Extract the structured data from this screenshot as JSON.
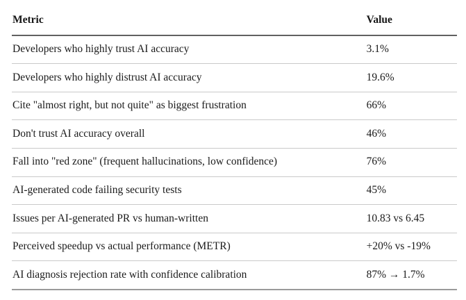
{
  "table": {
    "columns": [
      {
        "key": "metric",
        "label": "Metric"
      },
      {
        "key": "value",
        "label": "Value"
      }
    ],
    "rows": [
      {
        "metric": "Developers who highly trust AI accuracy",
        "value": "3.1%"
      },
      {
        "metric": "Developers who highly distrust AI accuracy",
        "value": "19.6%"
      },
      {
        "metric": "Cite \"almost right, but not quite\" as biggest frustration",
        "value": "66%"
      },
      {
        "metric": "Don't trust AI accuracy overall",
        "value": "46%"
      },
      {
        "metric": "Fall into \"red zone\" (frequent hallucinations, low confidence)",
        "value": "76%"
      },
      {
        "metric": "AI-generated code failing security tests",
        "value": "45%"
      },
      {
        "metric": "Issues per AI-generated PR vs human-written",
        "value": "10.83 vs 6.45"
      },
      {
        "metric": "Perceived speedup vs actual performance (METR)",
        "value": "+20% vs -19%"
      },
      {
        "metric": "AI diagnosis rejection rate with confidence calibration",
        "value": "87% → 1.7%"
      }
    ]
  },
  "colors": {
    "text": "#1a1a1a",
    "header_rule": "#606060",
    "row_rule": "#c9c9c9",
    "bottom_rule": "#9a9a9a"
  }
}
